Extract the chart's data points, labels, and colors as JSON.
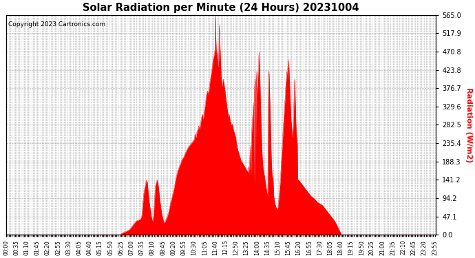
{
  "title": "Solar Radiation per Minute (24 Hours) 20231004",
  "ylabel": "Radiation (W/m2)",
  "copyright_text": "Copyright 2023 Cartronics.com",
  "ylabel_color": "#ff0000",
  "copyright_color": "#000000",
  "fill_color": "#ff0000",
  "line_color": "#ff0000",
  "background_color": "#ffffff",
  "grid_color": "#aaaaaa",
  "zero_line_color": "#ff0000",
  "ymax": 565.0,
  "yticks": [
    0.0,
    47.1,
    94.2,
    141.2,
    188.3,
    235.4,
    282.5,
    329.6,
    376.7,
    423.8,
    470.8,
    517.9,
    565.0
  ],
  "total_minutes": 1440,
  "xtick_interval": 5,
  "xtick_label_interval": 35
}
